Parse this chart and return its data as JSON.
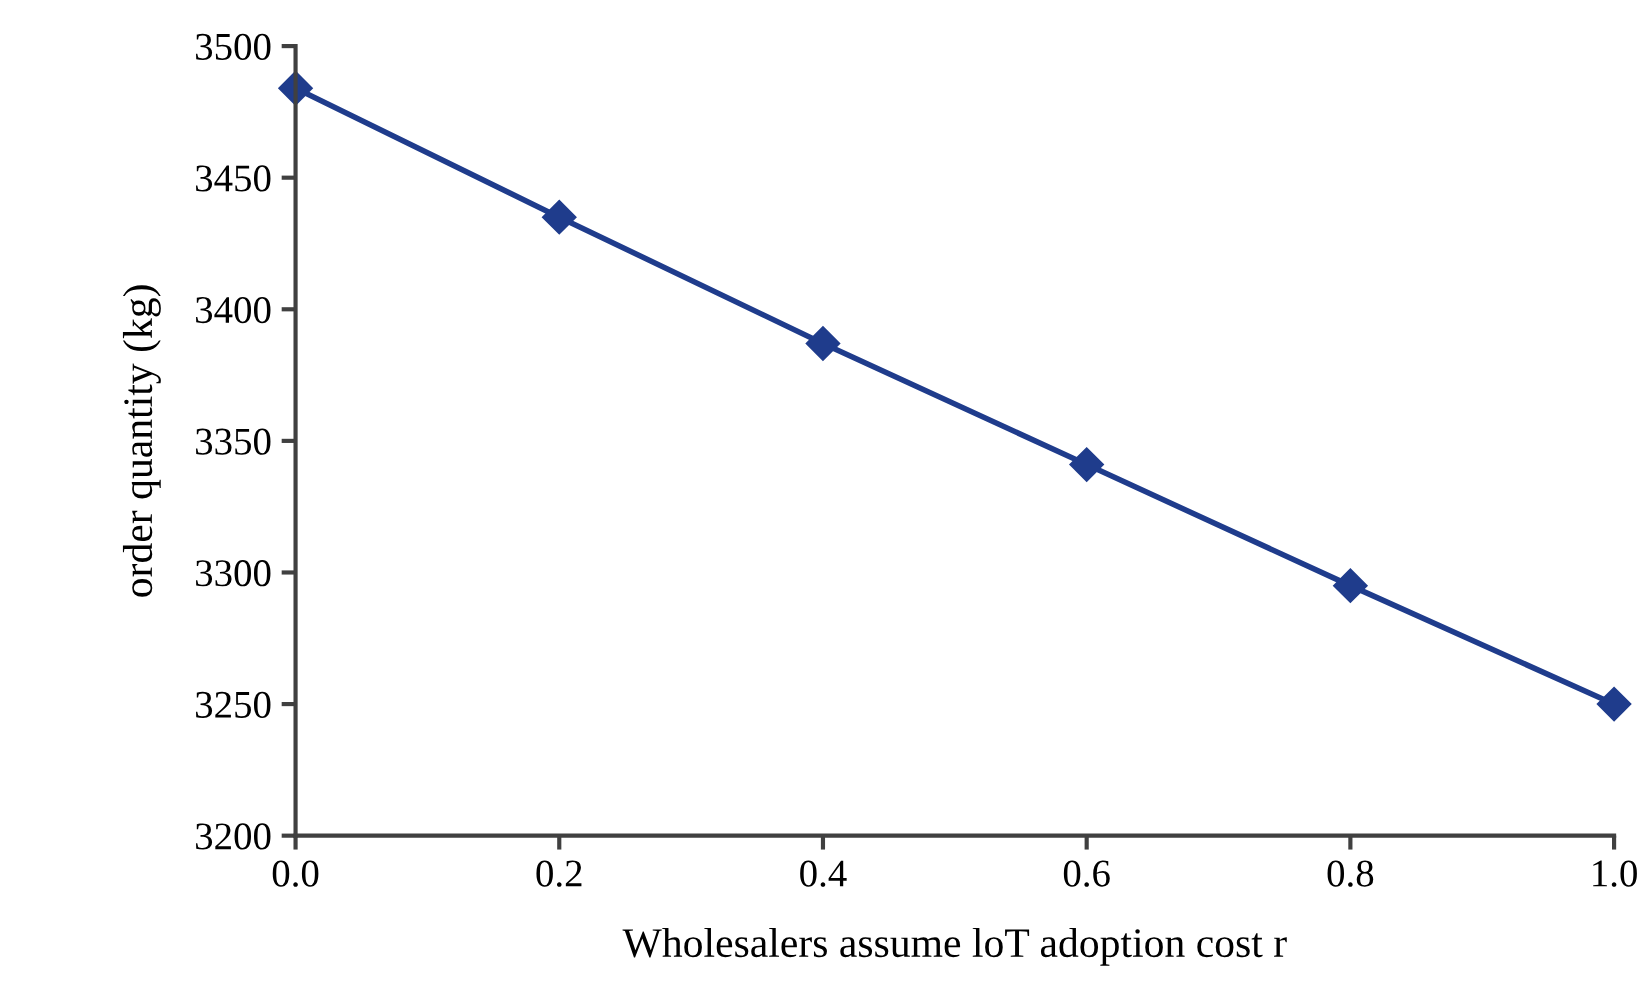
{
  "chart_data": {
    "type": "line",
    "xlabel": "Wholesalers assume loT adoption cost r",
    "ylabel": "order quantity (kg)",
    "x": [
      0.0,
      0.2,
      0.4,
      0.6,
      0.8,
      1.0
    ],
    "series": [
      {
        "color": "#1f3c8c",
        "values": [
          3484,
          3435,
          3387,
          3341,
          3295,
          3250
        ]
      }
    ],
    "xlim": [
      0.0,
      1.0
    ],
    "xticks": [
      {
        "value": 0.0,
        "label": "0.0"
      },
      {
        "value": 0.2,
        "label": "0.2"
      },
      {
        "value": 0.4,
        "label": "0.4"
      },
      {
        "value": 0.6,
        "label": "0.6"
      },
      {
        "value": 0.8,
        "label": "0.8"
      },
      {
        "value": 1.0,
        "label": "1.0"
      }
    ],
    "ylim": [
      3200,
      3500
    ],
    "yticks": [
      3200,
      3250,
      3300,
      3350,
      3400,
      3450,
      3500
    ],
    "marker": "diamond",
    "line_style": "solid"
  }
}
